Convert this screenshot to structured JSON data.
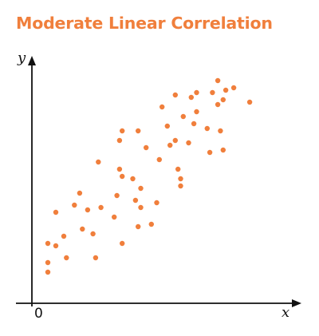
{
  "chart_data": {
    "type": "scatter",
    "title": "Moderate Linear Correlation",
    "xlabel": "x",
    "ylabel": "y",
    "origin_label": "0",
    "xlim": [
      0,
      100
    ],
    "ylim": [
      0,
      100
    ],
    "grid": false,
    "colors": {
      "title": "#f07f3c",
      "points": "#f07f3c",
      "axes": "#111111"
    },
    "series": [
      {
        "points": [
          {
            "x": 6,
            "y": 13
          },
          {
            "x": 6,
            "y": 17
          },
          {
            "x": 6,
            "y": 25
          },
          {
            "x": 9,
            "y": 24
          },
          {
            "x": 9,
            "y": 38
          },
          {
            "x": 12,
            "y": 28
          },
          {
            "x": 13,
            "y": 19
          },
          {
            "x": 16,
            "y": 41
          },
          {
            "x": 18,
            "y": 46
          },
          {
            "x": 19,
            "y": 31
          },
          {
            "x": 21,
            "y": 39
          },
          {
            "x": 23,
            "y": 29
          },
          {
            "x": 24,
            "y": 19
          },
          {
            "x": 25,
            "y": 59
          },
          {
            "x": 26,
            "y": 40
          },
          {
            "x": 31,
            "y": 36
          },
          {
            "x": 32,
            "y": 45
          },
          {
            "x": 33,
            "y": 56
          },
          {
            "x": 33,
            "y": 68
          },
          {
            "x": 34,
            "y": 25
          },
          {
            "x": 34,
            "y": 53
          },
          {
            "x": 34,
            "y": 72
          },
          {
            "x": 38,
            "y": 52
          },
          {
            "x": 39,
            "y": 43
          },
          {
            "x": 40,
            "y": 32
          },
          {
            "x": 40,
            "y": 72
          },
          {
            "x": 41,
            "y": 48
          },
          {
            "x": 41,
            "y": 40
          },
          {
            "x": 43,
            "y": 65
          },
          {
            "x": 45,
            "y": 33
          },
          {
            "x": 47,
            "y": 42
          },
          {
            "x": 48,
            "y": 60
          },
          {
            "x": 49,
            "y": 82
          },
          {
            "x": 51,
            "y": 74
          },
          {
            "x": 52,
            "y": 66
          },
          {
            "x": 54,
            "y": 68
          },
          {
            "x": 54,
            "y": 87
          },
          {
            "x": 55,
            "y": 56
          },
          {
            "x": 56,
            "y": 52
          },
          {
            "x": 56,
            "y": 49
          },
          {
            "x": 57,
            "y": 78
          },
          {
            "x": 59,
            "y": 67
          },
          {
            "x": 60,
            "y": 86
          },
          {
            "x": 61,
            "y": 75
          },
          {
            "x": 62,
            "y": 80
          },
          {
            "x": 62,
            "y": 88
          },
          {
            "x": 66,
            "y": 73
          },
          {
            "x": 67,
            "y": 63
          },
          {
            "x": 68,
            "y": 88
          },
          {
            "x": 70,
            "y": 83
          },
          {
            "x": 70,
            "y": 93
          },
          {
            "x": 71,
            "y": 72
          },
          {
            "x": 72,
            "y": 64
          },
          {
            "x": 72,
            "y": 85
          },
          {
            "x": 73,
            "y": 89
          },
          {
            "x": 76,
            "y": 90
          },
          {
            "x": 82,
            "y": 84
          }
        ]
      }
    ]
  }
}
